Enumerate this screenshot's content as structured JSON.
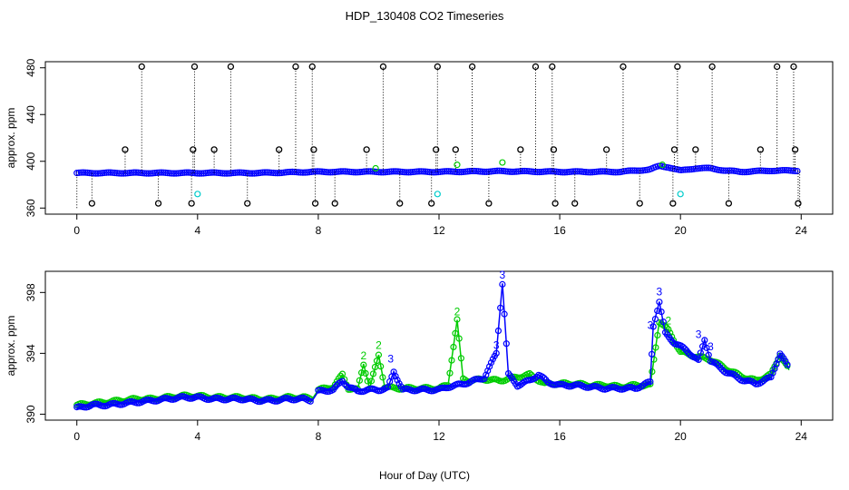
{
  "chart_data": [
    {
      "type": "scatter",
      "title": "HDP_130408  CO2 Timeseries",
      "ylabel": "approx. ppm",
      "xlabel": "",
      "xlim": [
        0,
        24
      ],
      "ylim": [
        360,
        480
      ],
      "xticks": [
        0,
        4,
        8,
        12,
        16,
        20,
        24
      ],
      "yticks": [
        360,
        400,
        440,
        480
      ],
      "grid": false,
      "colors": {
        "spike": "#000000",
        "baseline": "#0000ff",
        "minor": "#00cc00",
        "low": "#00cccc"
      },
      "baseline": {
        "x": [
          0,
          2,
          4,
          6,
          8,
          10,
          12,
          14,
          16,
          18,
          19.0,
          19.3,
          19.6,
          20,
          20.5,
          21,
          21.5,
          22,
          23,
          23.8
        ],
        "y": [
          390,
          390,
          390,
          390,
          391,
          391,
          391,
          391.5,
          391,
          391,
          393,
          396,
          395,
          392,
          394,
          394,
          392,
          391,
          392,
          392
        ]
      },
      "spikes": [
        {
          "x": 0.5,
          "y": 364
        },
        {
          "x": 1.6,
          "y": 410
        },
        {
          "x": 2.15,
          "y": 481
        },
        {
          "x": 2.7,
          "y": 364
        },
        {
          "x": 3.8,
          "y": 364
        },
        {
          "x": 3.85,
          "y": 410
        },
        {
          "x": 3.9,
          "y": 481
        },
        {
          "x": 4.55,
          "y": 410
        },
        {
          "x": 5.1,
          "y": 481
        },
        {
          "x": 5.65,
          "y": 364
        },
        {
          "x": 6.7,
          "y": 410
        },
        {
          "x": 7.25,
          "y": 481
        },
        {
          "x": 7.8,
          "y": 481
        },
        {
          "x": 7.85,
          "y": 410
        },
        {
          "x": 7.9,
          "y": 364
        },
        {
          "x": 8.55,
          "y": 364
        },
        {
          "x": 9.6,
          "y": 410
        },
        {
          "x": 10.15,
          "y": 481
        },
        {
          "x": 10.7,
          "y": 364
        },
        {
          "x": 11.75,
          "y": 364
        },
        {
          "x": 11.9,
          "y": 410
        },
        {
          "x": 11.95,
          "y": 481
        },
        {
          "x": 12.55,
          "y": 410
        },
        {
          "x": 13.1,
          "y": 481
        },
        {
          "x": 13.65,
          "y": 364
        },
        {
          "x": 14.7,
          "y": 410
        },
        {
          "x": 15.2,
          "y": 481
        },
        {
          "x": 15.75,
          "y": 481
        },
        {
          "x": 15.8,
          "y": 410
        },
        {
          "x": 15.85,
          "y": 364
        },
        {
          "x": 16.5,
          "y": 364
        },
        {
          "x": 17.55,
          "y": 410
        },
        {
          "x": 18.1,
          "y": 481
        },
        {
          "x": 18.65,
          "y": 364
        },
        {
          "x": 19.75,
          "y": 364
        },
        {
          "x": 19.8,
          "y": 410
        },
        {
          "x": 19.9,
          "y": 481
        },
        {
          "x": 20.5,
          "y": 410
        },
        {
          "x": 21.05,
          "y": 481
        },
        {
          "x": 21.6,
          "y": 364
        },
        {
          "x": 22.65,
          "y": 410
        },
        {
          "x": 23.2,
          "y": 481
        },
        {
          "x": 23.75,
          "y": 481
        },
        {
          "x": 23.8,
          "y": 410
        },
        {
          "x": 23.9,
          "y": 364
        }
      ],
      "low_points": [
        {
          "x": 4.0,
          "y": 372
        },
        {
          "x": 11.95,
          "y": 372
        },
        {
          "x": 20.0,
          "y": 372
        }
      ],
      "highlight_points": [
        {
          "x": 14.1,
          "y": 399
        },
        {
          "x": 12.6,
          "y": 397
        },
        {
          "x": 9.9,
          "y": 394
        },
        {
          "x": 19.4,
          "y": 397
        }
      ]
    },
    {
      "type": "line",
      "title": "",
      "ylabel": "approx. ppm",
      "xlabel": "Hour of Day (UTC)",
      "xlim": [
        0,
        24
      ],
      "ylim": [
        390,
        399
      ],
      "xticks": [
        0,
        4,
        8,
        12,
        16,
        20,
        24
      ],
      "yticks": [
        390,
        394,
        398
      ],
      "grid": false,
      "series": [
        {
          "color": "#0000ff",
          "x": [
            0,
            0.5,
            1,
            1.5,
            2,
            2.5,
            3,
            3.5,
            4,
            4.5,
            5,
            5.5,
            6,
            6.5,
            7,
            7.5,
            7.8,
            8,
            8.5,
            8.8,
            9,
            9.3,
            9.6,
            10,
            10.3,
            10.5,
            10.8,
            11,
            11.5,
            12,
            12.3,
            12.6,
            13,
            13.5,
            13.9,
            14.1,
            14.3,
            14.6,
            15,
            15.3,
            15.6,
            16,
            16.5,
            17,
            17.5,
            18,
            18.5,
            19.0,
            19.1,
            19.3,
            19.5,
            19.8,
            20.2,
            20.6,
            20.8,
            21.0,
            21.5,
            22,
            22.5,
            23,
            23.3,
            23.6
          ],
          "y": [
            390.4,
            390.6,
            390.6,
            390.7,
            390.8,
            390.9,
            391.0,
            391.1,
            391.1,
            391.0,
            391.0,
            391.0,
            390.9,
            390.9,
            391.0,
            391.0,
            390.9,
            391.5,
            391.6,
            392.2,
            391.8,
            391.5,
            391.6,
            391.6,
            391.7,
            392.8,
            391.6,
            391.6,
            391.6,
            391.6,
            391.8,
            391.9,
            392.1,
            392.4,
            394.0,
            398.6,
            392.6,
            391.9,
            392.2,
            392.6,
            392.1,
            391.9,
            391.9,
            391.8,
            391.7,
            391.7,
            391.7,
            392.1,
            395.8,
            397.4,
            395.3,
            394.7,
            394.2,
            393.5,
            394.9,
            393.5,
            392.8,
            392.3,
            392.0,
            392.4,
            394.0,
            393.0
          ],
          "labels": [
            {
              "x": 10.4,
              "y": 393.4,
              "text": "3"
            },
            {
              "x": 13.9,
              "y": 394.3,
              "text": "3"
            },
            {
              "x": 14.1,
              "y": 398.9,
              "text": "3"
            },
            {
              "x": 19.0,
              "y": 395.6,
              "text": "3"
            },
            {
              "x": 19.3,
              "y": 397.8,
              "text": "3"
            },
            {
              "x": 20.6,
              "y": 395.0,
              "text": "3"
            },
            {
              "x": 21.0,
              "y": 394.2,
              "text": "3"
            }
          ]
        },
        {
          "color": "#00cc00",
          "x": [
            0,
            0.5,
            1,
            1.5,
            2,
            2.5,
            3,
            3.5,
            4,
            4.5,
            5,
            5.5,
            6,
            6.5,
            7,
            7.5,
            7.8,
            8,
            8.5,
            8.8,
            9,
            9.3,
            9.5,
            9.7,
            10.0,
            10.2,
            10.5,
            11,
            11.5,
            12,
            12.3,
            12.6,
            12.8,
            13,
            13.5,
            14,
            14.5,
            15,
            15.5,
            16,
            16.5,
            17,
            17.5,
            18,
            18.5,
            19.0,
            19.3,
            19.6,
            20,
            20.5,
            21.0,
            21.5,
            22,
            22.5,
            23,
            23.3,
            23.6
          ],
          "y": [
            390.6,
            390.7,
            390.8,
            390.9,
            391.0,
            391.0,
            391.1,
            391.2,
            391.2,
            391.1,
            391.1,
            391.1,
            391.0,
            391.0,
            391.1,
            391.1,
            391.0,
            391.6,
            391.8,
            392.6,
            391.7,
            391.6,
            393.3,
            391.7,
            393.9,
            391.8,
            391.7,
            391.7,
            391.7,
            391.7,
            391.9,
            396.2,
            392.3,
            392.2,
            392.3,
            392.2,
            392.4,
            392.6,
            392.0,
            392.0,
            392.0,
            391.9,
            391.9,
            391.8,
            391.9,
            391.9,
            396.1,
            395.5,
            394.1,
            393.8,
            393.6,
            393.0,
            392.5,
            392.2,
            392.6,
            393.9,
            392.9
          ],
          "labels": [
            {
              "x": 9.5,
              "y": 393.6,
              "text": "2"
            },
            {
              "x": 10.0,
              "y": 394.3,
              "text": "2"
            },
            {
              "x": 12.6,
              "y": 396.5,
              "text": "2"
            },
            {
              "x": 19.6,
              "y": 395.9,
              "text": "2"
            }
          ]
        }
      ]
    }
  ]
}
